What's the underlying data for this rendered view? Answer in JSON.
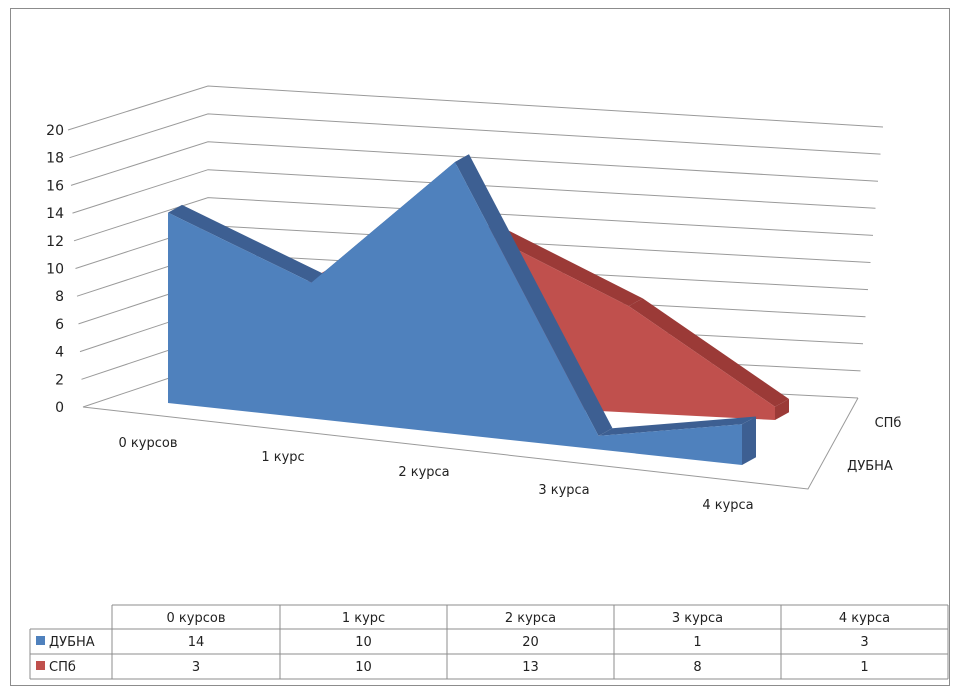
{
  "chart_data": {
    "type": "area",
    "title": "",
    "categories": [
      "0 курсов",
      "1 курс",
      "2 курса",
      "3 курса",
      "4 курса"
    ],
    "series": [
      {
        "name": "ДУБНА",
        "values": [
          14,
          10,
          20,
          1,
          3
        ]
      },
      {
        "name": "СПб",
        "values": [
          3,
          10,
          13,
          8,
          1
        ]
      }
    ],
    "depth_labels": [
      "СПб",
      "ДУБНА"
    ],
    "yticks": [
      "0",
      "2",
      "4",
      "6",
      "8",
      "10",
      "12",
      "14",
      "16",
      "18",
      "20"
    ],
    "ylim": [
      0,
      20
    ],
    "grid": true,
    "data_table": true,
    "colors": {
      "ДУБНА": "#4f81bd",
      "СПб": "#c0504d"
    }
  }
}
